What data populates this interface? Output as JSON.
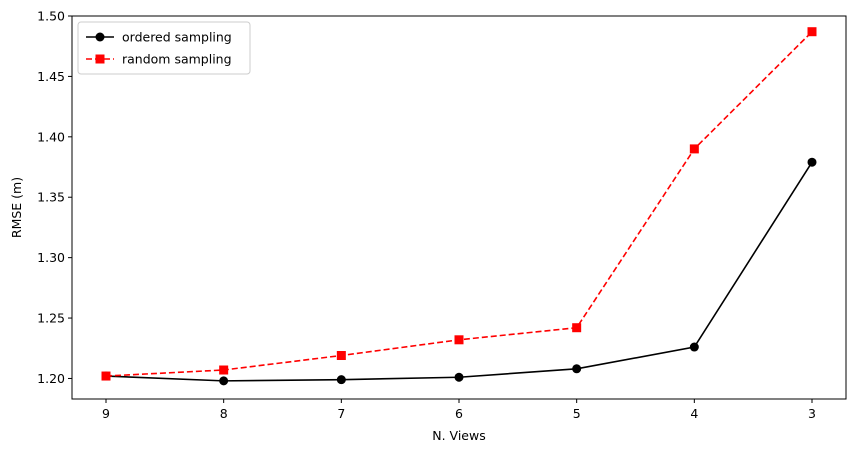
{
  "chart_data": {
    "type": "line",
    "title": "",
    "xlabel": "N. Views",
    "ylabel": "RMSE (m)",
    "categories": [
      "9",
      "8",
      "7",
      "6",
      "5",
      "4",
      "3"
    ],
    "ylim": [
      1.183,
      1.5
    ],
    "yticks": [
      1.2,
      1.25,
      1.3,
      1.35,
      1.4,
      1.45,
      1.5
    ],
    "ytick_labels": [
      "1.20",
      "1.25",
      "1.30",
      "1.35",
      "1.40",
      "1.45",
      "1.50"
    ],
    "grid": false,
    "legend_position": "upper-left",
    "series": [
      {
        "name": "ordered sampling",
        "values": [
          1.202,
          1.198,
          1.199,
          1.201,
          1.208,
          1.226,
          1.379
        ],
        "color": "#000000",
        "marker": "circle",
        "linestyle": "solid"
      },
      {
        "name": "random sampling",
        "values": [
          1.202,
          1.207,
          1.219,
          1.232,
          1.242,
          1.39,
          1.487
        ],
        "color": "#ff0000",
        "marker": "square",
        "linestyle": "dashed"
      }
    ]
  }
}
